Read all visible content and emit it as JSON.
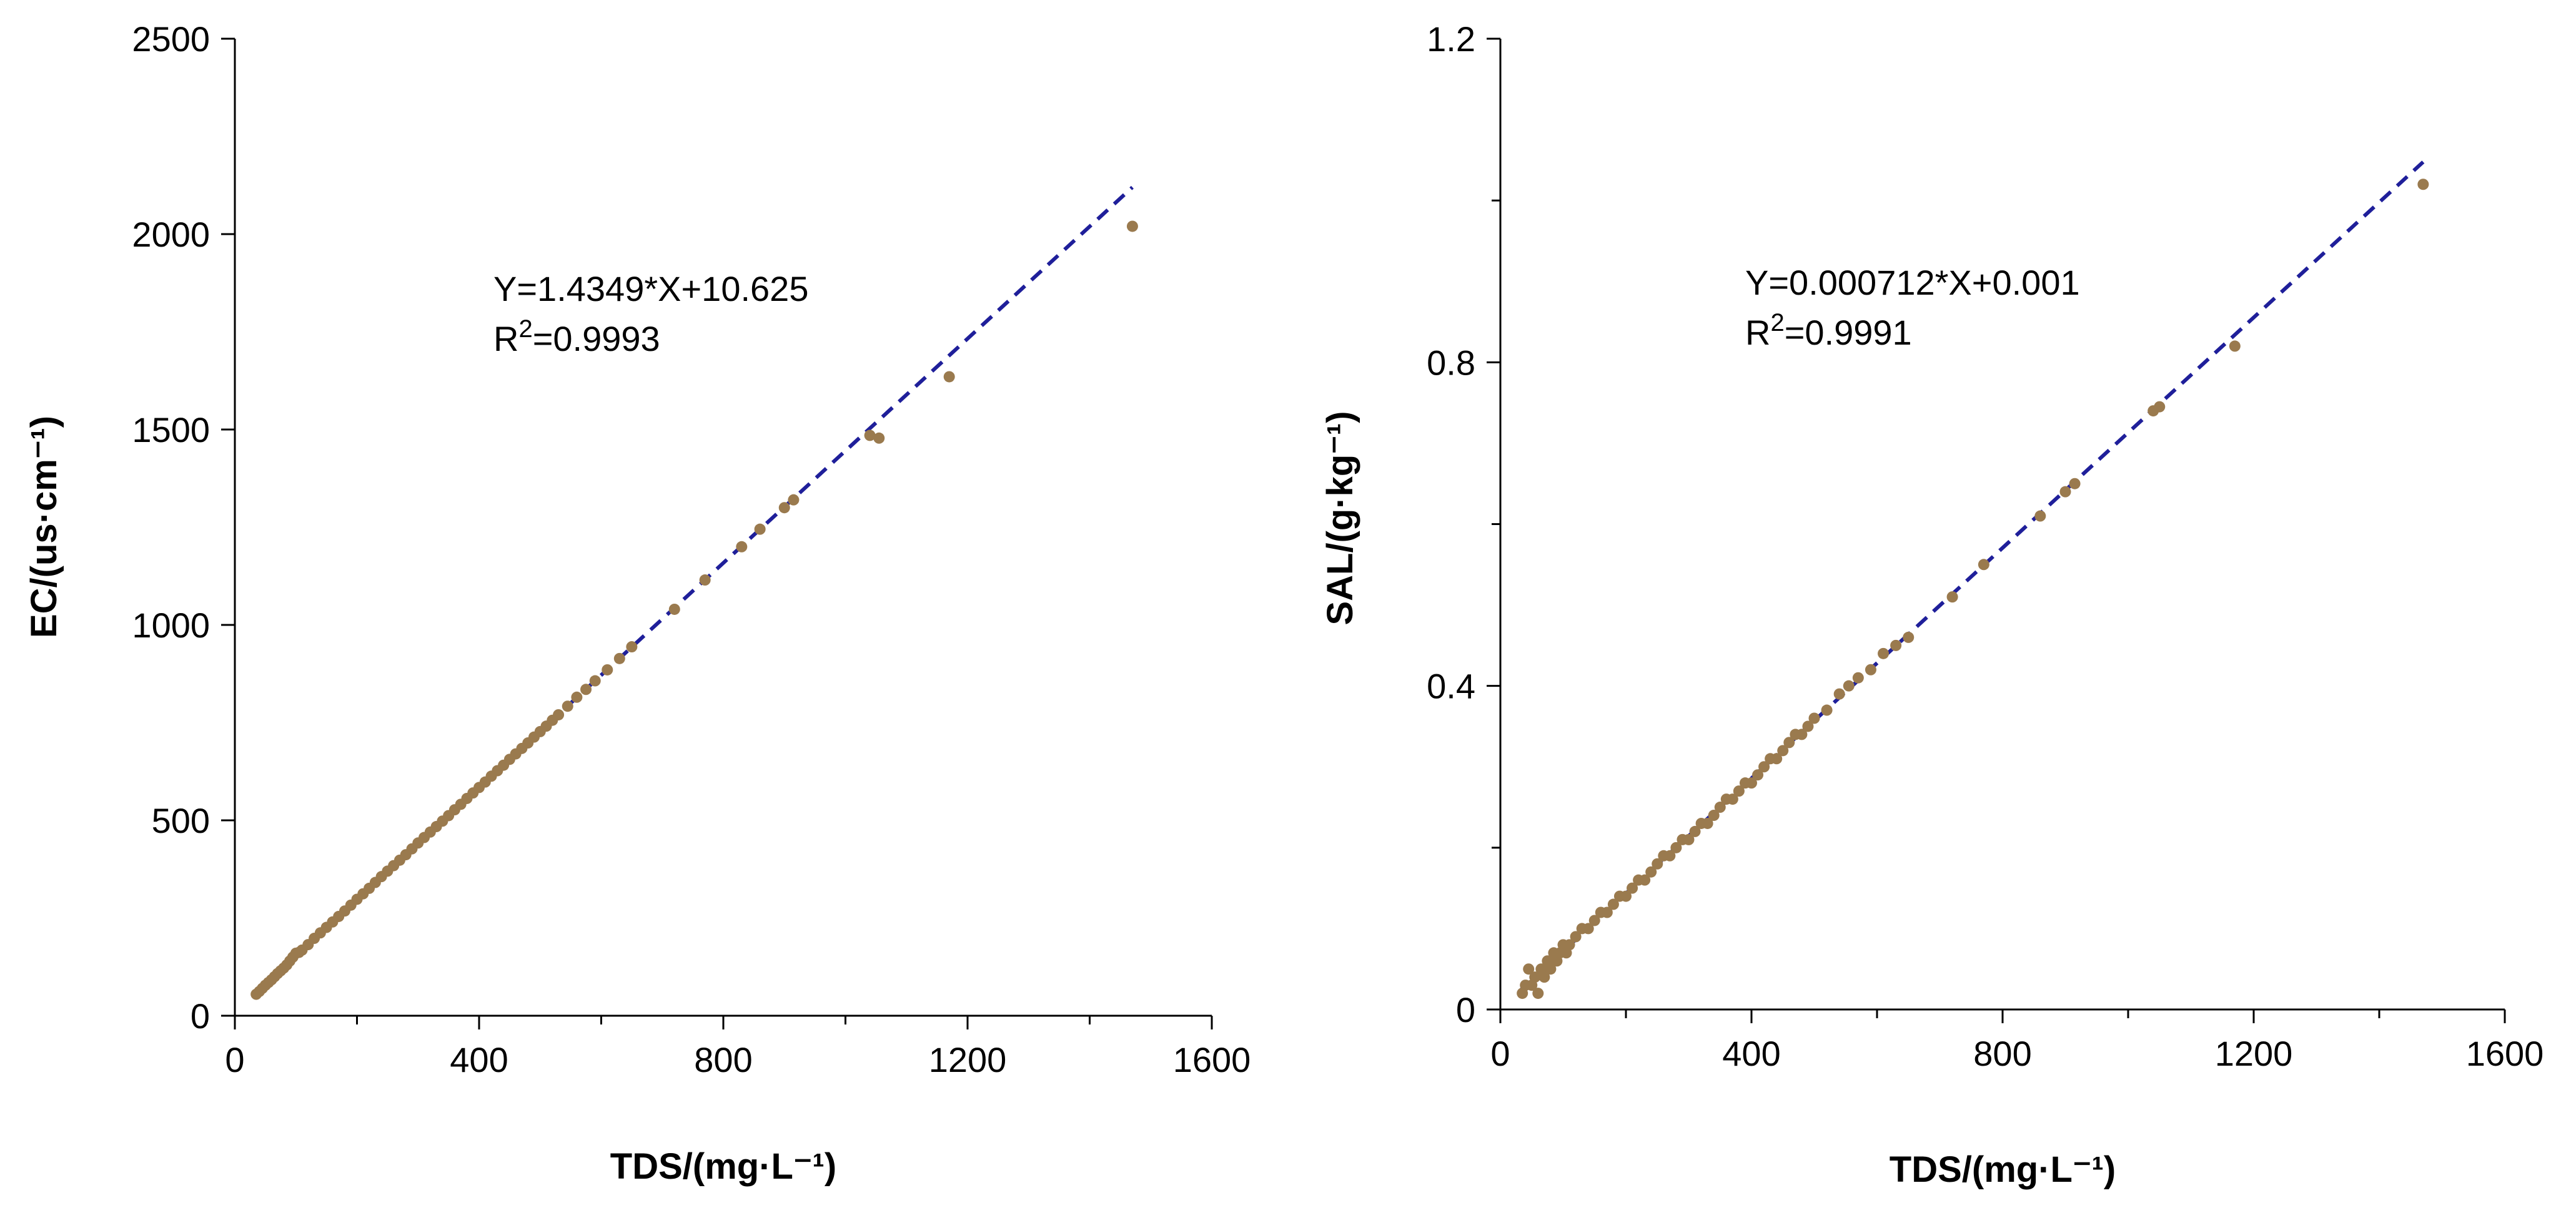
{
  "colors": {
    "point": "#9a7a4e",
    "fit_line": "#1f1f9a",
    "axis": "#000000",
    "text": "#000000"
  },
  "chart_data": [
    {
      "type": "scatter",
      "id": "ec",
      "xlabel": "TDS/(mg·L⁻¹)",
      "ylabel": "EC/(us·cm⁻¹)",
      "xlim": [
        0,
        1600
      ],
      "ylim": [
        0,
        2500
      ],
      "xticks": [
        0,
        400,
        800,
        1200,
        1600
      ],
      "xtick_labels": [
        "0",
        "400",
        "800",
        "1200",
        "1600"
      ],
      "yticks": [
        0,
        500,
        1000,
        1500,
        2000,
        2500
      ],
      "ytick_labels": [
        "0",
        "500",
        "1000",
        "1500",
        "2000",
        "2500"
      ],
      "equation": "Y=1.4349*X+10.625",
      "r2_prefix": "R",
      "r2_sup": "2",
      "r2_value": "=0.9993",
      "fit": {
        "slope": 1.4349,
        "intercept": 10.625,
        "x_range": [
          30,
          1470
        ]
      },
      "points": [
        [
          35,
          55
        ],
        [
          40,
          62
        ],
        [
          45,
          70
        ],
        [
          50,
          78
        ],
        [
          55,
          85
        ],
        [
          60,
          92
        ],
        [
          65,
          100
        ],
        [
          70,
          108
        ],
        [
          75,
          115
        ],
        [
          80,
          122
        ],
        [
          85,
          130
        ],
        [
          90,
          140
        ],
        [
          95,
          150
        ],
        [
          100,
          160
        ],
        [
          105,
          162
        ],
        [
          110,
          168
        ],
        [
          120,
          182
        ],
        [
          130,
          198
        ],
        [
          140,
          212
        ],
        [
          150,
          226
        ],
        [
          160,
          240
        ],
        [
          170,
          254
        ],
        [
          180,
          268
        ],
        [
          190,
          283
        ],
        [
          200,
          298
        ],
        [
          210,
          312
        ],
        [
          220,
          326
        ],
        [
          230,
          341
        ],
        [
          240,
          356
        ],
        [
          250,
          370
        ],
        [
          260,
          384
        ],
        [
          270,
          398
        ],
        [
          280,
          412
        ],
        [
          290,
          427
        ],
        [
          300,
          442
        ],
        [
          310,
          456
        ],
        [
          320,
          470
        ],
        [
          330,
          484
        ],
        [
          340,
          498
        ],
        [
          350,
          512
        ],
        [
          360,
          527
        ],
        [
          370,
          541
        ],
        [
          380,
          556
        ],
        [
          390,
          570
        ],
        [
          400,
          584
        ],
        [
          410,
          598
        ],
        [
          420,
          613
        ],
        [
          430,
          627
        ],
        [
          440,
          641
        ],
        [
          450,
          656
        ],
        [
          460,
          670
        ],
        [
          470,
          684
        ],
        [
          480,
          698
        ],
        [
          490,
          713
        ],
        [
          500,
          727
        ],
        [
          510,
          741
        ],
        [
          520,
          756
        ],
        [
          530,
          770
        ],
        [
          545,
          792
        ],
        [
          560,
          815
        ],
        [
          575,
          835
        ],
        [
          590,
          857
        ],
        [
          610,
          885
        ],
        [
          630,
          914
        ],
        [
          650,
          944
        ],
        [
          720,
          1040
        ],
        [
          770,
          1115
        ],
        [
          830,
          1200
        ],
        [
          860,
          1245
        ],
        [
          900,
          1300
        ],
        [
          915,
          1320
        ],
        [
          1040,
          1485
        ],
        [
          1055,
          1478
        ],
        [
          1170,
          1635
        ],
        [
          1470,
          2020
        ]
      ]
    },
    {
      "type": "scatter",
      "id": "sal",
      "xlabel": "TDS/(mg·L⁻¹)",
      "ylabel": "SAL/(g·kg⁻¹)",
      "xlim": [
        0,
        1600
      ],
      "ylim": [
        0,
        1.2
      ],
      "xticks": [
        0,
        400,
        800,
        1200,
        1600
      ],
      "xtick_labels": [
        "0",
        "400",
        "800",
        "1200",
        "1600"
      ],
      "yticks": [
        0,
        0.4,
        0.8,
        1.2
      ],
      "ytick_labels": [
        "0",
        "0.4",
        "0.8",
        "1.2"
      ],
      "yminor_ticks": [
        0.2,
        0.6,
        1.0
      ],
      "equation": "Y=0.000712*X+0.001",
      "r2_prefix": "R",
      "r2_sup": "2",
      "r2_value": "=0.9991",
      "fit": {
        "slope": 0.000712,
        "intercept": 0.001,
        "x_range": [
          30,
          1470
        ]
      },
      "points": [
        [
          35,
          0.02
        ],
        [
          40,
          0.03
        ],
        [
          45,
          0.05
        ],
        [
          50,
          0.03
        ],
        [
          55,
          0.04
        ],
        [
          60,
          0.02
        ],
        [
          65,
          0.05
        ],
        [
          70,
          0.04
        ],
        [
          75,
          0.06
        ],
        [
          80,
          0.05
        ],
        [
          85,
          0.07
        ],
        [
          90,
          0.06
        ],
        [
          95,
          0.07
        ],
        [
          100,
          0.08
        ],
        [
          105,
          0.07
        ],
        [
          110,
          0.08
        ],
        [
          120,
          0.09
        ],
        [
          130,
          0.1
        ],
        [
          140,
          0.1
        ],
        [
          150,
          0.11
        ],
        [
          160,
          0.12
        ],
        [
          170,
          0.12
        ],
        [
          180,
          0.13
        ],
        [
          190,
          0.14
        ],
        [
          200,
          0.14
        ],
        [
          210,
          0.15
        ],
        [
          220,
          0.16
        ],
        [
          230,
          0.16
        ],
        [
          240,
          0.17
        ],
        [
          250,
          0.18
        ],
        [
          260,
          0.19
        ],
        [
          270,
          0.19
        ],
        [
          280,
          0.2
        ],
        [
          290,
          0.21
        ],
        [
          300,
          0.21
        ],
        [
          310,
          0.22
        ],
        [
          320,
          0.23
        ],
        [
          330,
          0.23
        ],
        [
          340,
          0.24
        ],
        [
          350,
          0.25
        ],
        [
          360,
          0.26
        ],
        [
          370,
          0.26
        ],
        [
          380,
          0.27
        ],
        [
          390,
          0.28
        ],
        [
          400,
          0.28
        ],
        [
          410,
          0.29
        ],
        [
          420,
          0.3
        ],
        [
          430,
          0.31
        ],
        [
          440,
          0.31
        ],
        [
          450,
          0.32
        ],
        [
          460,
          0.33
        ],
        [
          470,
          0.34
        ],
        [
          480,
          0.34
        ],
        [
          490,
          0.35
        ],
        [
          500,
          0.36
        ],
        [
          520,
          0.37
        ],
        [
          540,
          0.39
        ],
        [
          555,
          0.4
        ],
        [
          570,
          0.41
        ],
        [
          590,
          0.42
        ],
        [
          610,
          0.44
        ],
        [
          630,
          0.45
        ],
        [
          650,
          0.46
        ],
        [
          720,
          0.51
        ],
        [
          770,
          0.55
        ],
        [
          860,
          0.61
        ],
        [
          900,
          0.64
        ],
        [
          915,
          0.65
        ],
        [
          1040,
          0.74
        ],
        [
          1050,
          0.745
        ],
        [
          1170,
          0.82
        ],
        [
          1470,
          1.02
        ]
      ]
    }
  ]
}
